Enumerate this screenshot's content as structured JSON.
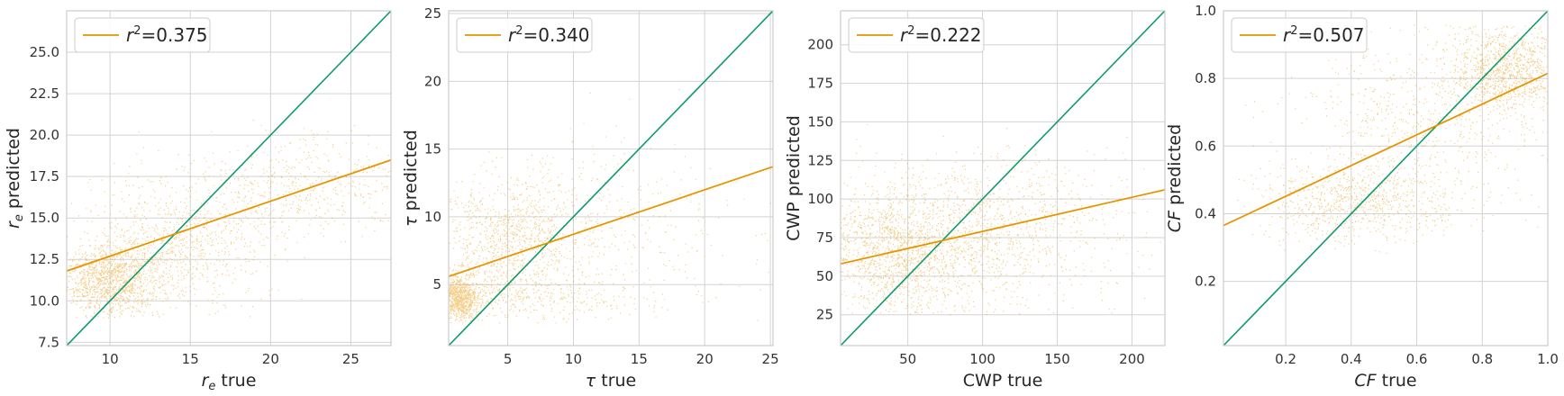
{
  "chart_data": [
    {
      "type": "scatter",
      "xlabel": "r_e true",
      "ylabel": "r_e predicted",
      "xlim": [
        7.3,
        27.5
      ],
      "ylim": [
        7.3,
        27.5
      ],
      "xticks": [
        10,
        15,
        20,
        25
      ],
      "yticks": [
        7.5,
        10.0,
        12.5,
        15.0,
        17.5,
        20.0,
        22.5,
        25.0
      ],
      "xtick_labels": [
        "10",
        "15",
        "20",
        "25"
      ],
      "ytick_labels": [
        "7.5",
        "10.0",
        "12.5",
        "15.0",
        "17.5",
        "20.0",
        "22.5",
        "25.0"
      ],
      "grid": true,
      "legend": {
        "position": "top-left",
        "label": "r²=0.375",
        "r2": 0.375
      },
      "fit_line": {
        "x": [
          7.3,
          27.5
        ],
        "y": [
          11.8,
          18.5
        ]
      },
      "identity_line": {
        "x": [
          7.3,
          27.5
        ],
        "y": [
          7.3,
          27.5
        ]
      },
      "scatter_summary": {
        "clusters": [
          {
            "cx": 10.0,
            "cy": 11.2,
            "sx": 1.6,
            "sy": 1.1,
            "weight": 0.45
          },
          {
            "cx": 14.0,
            "cy": 13.5,
            "sx": 3.0,
            "sy": 2.0,
            "weight": 0.35
          },
          {
            "cx": 22.0,
            "cy": 17.0,
            "sx": 3.5,
            "sy": 1.5,
            "weight": 0.2
          }
        ],
        "xclip": [
          7.3,
          27.5
        ],
        "yclip": [
          9.0,
          21.0
        ]
      }
    },
    {
      "type": "scatter",
      "xlabel": "τ true",
      "ylabel": "τ predicted",
      "xlim": [
        0.5,
        25.2
      ],
      "ylim": [
        0.5,
        25.2
      ],
      "xticks": [
        5,
        10,
        15,
        20,
        25
      ],
      "yticks": [
        5,
        10,
        15,
        20,
        25
      ],
      "xtick_labels": [
        "5",
        "10",
        "15",
        "20",
        "25"
      ],
      "ytick_labels": [
        "5",
        "10",
        "15",
        "20",
        "25"
      ],
      "grid": true,
      "legend": {
        "position": "top-left",
        "label": "r²=0.340",
        "r2": 0.34
      },
      "fit_line": {
        "x": [
          0.5,
          25.2
        ],
        "y": [
          5.6,
          13.7
        ]
      },
      "identity_line": {
        "x": [
          0.5,
          25.2
        ],
        "y": [
          0.5,
          25.2
        ]
      },
      "scatter_summary": {
        "clusters": [
          {
            "cx": 1.2,
            "cy": 4.0,
            "sx": 0.8,
            "sy": 0.8,
            "weight": 0.35
          },
          {
            "cx": 5.0,
            "cy": 8.0,
            "sx": 2.8,
            "sy": 2.5,
            "weight": 0.4
          },
          {
            "cx": 12.0,
            "cy": 9.0,
            "sx": 5.0,
            "sy": 3.5,
            "weight": 0.15
          },
          {
            "cx": 7.0,
            "cy": 4.0,
            "sx": 4.0,
            "sy": 0.7,
            "weight": 0.1
          }
        ],
        "xclip": [
          0.5,
          25.2
        ],
        "yclip": [
          2.2,
          22.0
        ]
      }
    },
    {
      "type": "scatter",
      "xlabel": "CWP true",
      "ylabel": "CWP predicted",
      "xlim": [
        5,
        222
      ],
      "ylim": [
        5,
        222
      ],
      "xticks": [
        50,
        100,
        150,
        200
      ],
      "yticks": [
        25,
        50,
        75,
        100,
        125,
        150,
        175,
        200
      ],
      "xtick_labels": [
        "50",
        "100",
        "150",
        "200"
      ],
      "ytick_labels": [
        "25",
        "50",
        "75",
        "100",
        "125",
        "150",
        "175",
        "200"
      ],
      "grid": true,
      "legend": {
        "position": "top-left",
        "label": "r²=0.222",
        "r2": 0.222
      },
      "fit_line": {
        "x": [
          5,
          222
        ],
        "y": [
          58,
          106
        ]
      },
      "identity_line": {
        "x": [
          5,
          222
        ],
        "y": [
          5,
          222
        ]
      },
      "scatter_summary": {
        "clusters": [
          {
            "cx": 40,
            "cy": 65,
            "sx": 30,
            "sy": 22,
            "weight": 0.55
          },
          {
            "cx": 90,
            "cy": 78,
            "sx": 40,
            "sy": 25,
            "weight": 0.35
          },
          {
            "cx": 150,
            "cy": 85,
            "sx": 40,
            "sy": 25,
            "weight": 0.1
          }
        ],
        "xclip": [
          5,
          222
        ],
        "yclip": [
          25,
          150
        ]
      }
    },
    {
      "type": "scatter",
      "xlabel": "CF true",
      "ylabel": "CF predicted",
      "xlim": [
        0.01,
        1.0
      ],
      "ylim": [
        0.01,
        1.0
      ],
      "xticks": [
        0.2,
        0.4,
        0.6,
        0.8,
        1.0
      ],
      "yticks": [
        0.2,
        0.4,
        0.6,
        0.8,
        1.0
      ],
      "xtick_labels": [
        "0.2",
        "0.4",
        "0.6",
        "0.8",
        "1.0"
      ],
      "ytick_labels": [
        "0.2",
        "0.4",
        "0.6",
        "0.8",
        "1.0"
      ],
      "grid": true,
      "legend": {
        "position": "top-left",
        "label": "r²=0.507",
        "r2": 0.507
      },
      "fit_line": {
        "x": [
          0.01,
          1.0
        ],
        "y": [
          0.365,
          0.815
        ]
      },
      "identity_line": {
        "x": [
          0.01,
          1.0
        ],
        "y": [
          0.01,
          1.0
        ]
      },
      "scatter_summary": {
        "clusters": [
          {
            "cx": 0.4,
            "cy": 0.43,
            "sx": 0.15,
            "sy": 0.06,
            "weight": 0.3
          },
          {
            "cx": 0.88,
            "cy": 0.83,
            "sx": 0.1,
            "sy": 0.07,
            "weight": 0.45
          },
          {
            "cx": 0.6,
            "cy": 0.65,
            "sx": 0.2,
            "sy": 0.15,
            "weight": 0.25
          }
        ],
        "xclip": [
          0.01,
          1.0
        ],
        "yclip": [
          0.28,
          0.96
        ]
      }
    }
  ],
  "colors": {
    "scatter": "#e69500",
    "fit_line": "#e69500",
    "identity_line": "#119a6e",
    "grid": "#d3d3d3",
    "frame": "#cccccc"
  }
}
